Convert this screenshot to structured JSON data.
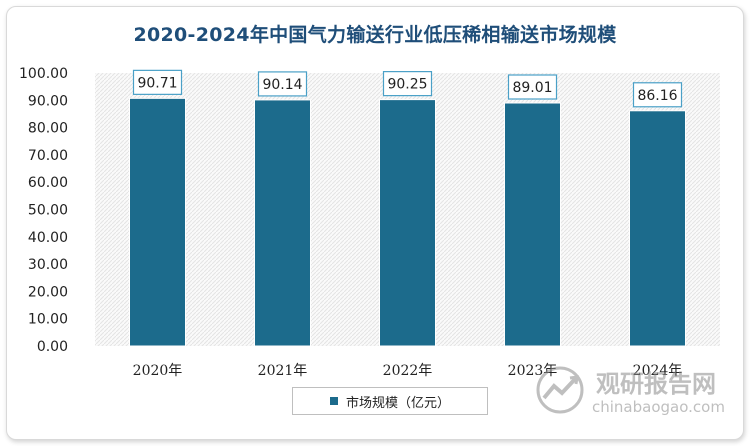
{
  "chart_data": {
    "type": "bar",
    "title": "2020-2024年中国气力输送行业低压稀相输送市场规模",
    "categories": [
      "2020年",
      "2021年",
      "2022年",
      "2023年",
      "2024年"
    ],
    "series": [
      {
        "name": "市场规模（亿元）",
        "values": [
          90.71,
          90.14,
          90.25,
          89.01,
          86.16
        ]
      }
    ],
    "data_labels": [
      "90.71",
      "90.14",
      "90.25",
      "89.01",
      "86.16"
    ],
    "yticks": [
      "0.00",
      "10.00",
      "20.00",
      "30.00",
      "40.00",
      "50.00",
      "60.00",
      "70.00",
      "80.00",
      "90.00",
      "100.00"
    ],
    "ylim": [
      0,
      100
    ],
    "xlabel": "",
    "ylabel": "",
    "grid": false,
    "legend_position": "bottom",
    "bar_color": "#1c6b8c",
    "label_border_color": "#4aa0c7"
  },
  "watermark": {
    "brand": "观研报告网",
    "url": "chinabaogao.com"
  }
}
